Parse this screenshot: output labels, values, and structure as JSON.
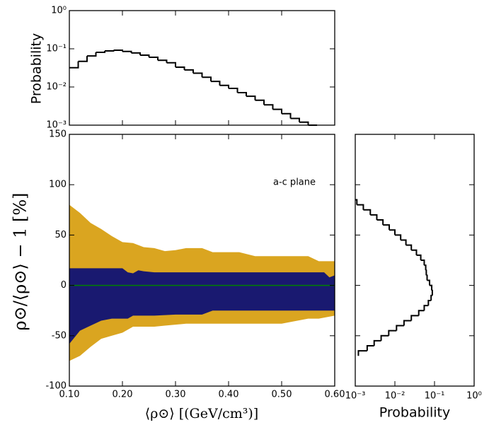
{
  "chart_data": [
    {
      "type": "area",
      "xlabel": "⟨ρ⊙⟩ [(GeV/cm³)]",
      "ylabel": "ρ⊙/⟨ρ⊙⟩ − 1  [%]",
      "annotation": "a-c plane",
      "xlim": [
        0.1,
        0.6
      ],
      "ylim": [
        -100,
        150
      ],
      "xticks": [
        {
          "value": 0.1,
          "label": "0.10"
        },
        {
          "value": 0.2,
          "label": "0.20"
        },
        {
          "value": 0.3,
          "label": "0.30"
        },
        {
          "value": 0.4,
          "label": "0.40"
        },
        {
          "value": 0.5,
          "label": "0.50"
        },
        {
          "value": 0.6,
          "label": "0.60"
        }
      ],
      "yticks": [
        -100,
        -50,
        0,
        50,
        100,
        150
      ],
      "bands": [
        {
          "color": "#daa520",
          "x": [
            0.1,
            0.12,
            0.14,
            0.16,
            0.18,
            0.2,
            0.22,
            0.24,
            0.26,
            0.28,
            0.3,
            0.32,
            0.35,
            0.37,
            0.4,
            0.42,
            0.45,
            0.5,
            0.52,
            0.55,
            0.57,
            0.6
          ],
          "upper": [
            80,
            72,
            62,
            56,
            49,
            43,
            42,
            38,
            37,
            34,
            35,
            37,
            37,
            33,
            33,
            33,
            29,
            29,
            29,
            29,
            24,
            24
          ],
          "lower": [
            -75,
            -70,
            -61,
            -53,
            -50,
            -47,
            -41,
            -41,
            -41,
            -40,
            -39,
            -38,
            -38,
            -38,
            -38,
            -38,
            -38,
            -38,
            -36,
            -33,
            -33,
            -30
          ]
        },
        {
          "color": "#191970",
          "x": [
            0.1,
            0.12,
            0.14,
            0.16,
            0.18,
            0.2,
            0.21,
            0.22,
            0.23,
            0.24,
            0.26,
            0.3,
            0.35,
            0.37,
            0.4,
            0.5,
            0.58,
            0.59,
            0.6
          ],
          "upper": [
            17,
            17,
            17,
            17,
            17,
            17,
            13,
            12,
            15,
            14,
            13,
            13,
            13,
            13,
            13,
            13,
            13,
            8,
            10
          ],
          "lower": [
            -58,
            -45,
            -40,
            -35,
            -33,
            -33,
            -33,
            -30,
            -30,
            -30,
            -30,
            -29,
            -29,
            -25,
            -25,
            -25,
            -25,
            -25,
            -25
          ]
        }
      ],
      "series": [
        {
          "color": "#008000",
          "x": [
            0.1,
            0.6
          ],
          "values": [
            0,
            0
          ]
        }
      ]
    },
    {
      "type": "histogram",
      "ylabel": "Probability",
      "log_y": true,
      "ylim": [
        0.001,
        1
      ],
      "yticks": [
        {
          "value": 1,
          "label": "10⁰"
        },
        {
          "value": 0.1,
          "label": "10⁻¹"
        },
        {
          "value": 0.01,
          "label": "10⁻²"
        },
        {
          "value": 0.001,
          "label": "10⁻³"
        }
      ],
      "bins": [
        0.1,
        0.1167,
        0.1333,
        0.15,
        0.1667,
        0.1833,
        0.2,
        0.2167,
        0.2333,
        0.25,
        0.2667,
        0.2833,
        0.3,
        0.3167,
        0.3333,
        0.35,
        0.3667,
        0.3833,
        0.4,
        0.4167,
        0.4333,
        0.45,
        0.4667,
        0.4833,
        0.5,
        0.5167,
        0.5333,
        0.55,
        0.5667
      ],
      "values": [
        0.032,
        0.047,
        0.065,
        0.081,
        0.088,
        0.092,
        0.085,
        0.078,
        0.068,
        0.06,
        0.05,
        0.043,
        0.033,
        0.028,
        0.023,
        0.018,
        0.014,
        0.011,
        0.0092,
        0.0071,
        0.0057,
        0.0045,
        0.0034,
        0.0026,
        0.002,
        0.0015,
        0.0012,
        0.001
      ],
      "color": "#000000"
    },
    {
      "type": "histogram",
      "orientation": "horizontal",
      "xlabel": "Probability",
      "log_x": true,
      "xlim": [
        0.001,
        1
      ],
      "xticks": [
        {
          "value": 0.001,
          "label": "10⁻³"
        },
        {
          "value": 0.01,
          "label": "10⁻²"
        },
        {
          "value": 0.1,
          "label": "10⁻¹"
        },
        {
          "value": 1,
          "label": "10⁰"
        }
      ],
      "bins": [
        -70,
        -65,
        -60,
        -55,
        -50,
        -45,
        -40,
        -35,
        -30,
        -25,
        -20,
        -15,
        -10,
        -5,
        0,
        5,
        10,
        15,
        20,
        25,
        30,
        35,
        40,
        45,
        50,
        55,
        60,
        65,
        70,
        75,
        80,
        85
      ],
      "values": [
        0.0012,
        0.002,
        0.003,
        0.0045,
        0.007,
        0.011,
        0.017,
        0.026,
        0.04,
        0.055,
        0.07,
        0.082,
        0.088,
        0.085,
        0.075,
        0.065,
        0.062,
        0.06,
        0.055,
        0.045,
        0.035,
        0.026,
        0.019,
        0.014,
        0.01,
        0.0072,
        0.005,
        0.0035,
        0.0024,
        0.0016,
        0.0011
      ],
      "color": "#000000"
    }
  ]
}
